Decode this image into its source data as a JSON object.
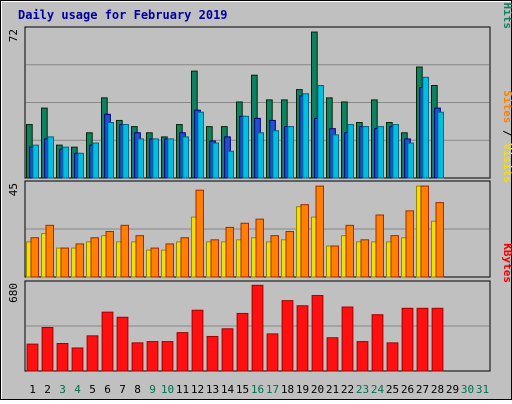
{
  "chart_data": {
    "type": "bar",
    "title": "Daily usage for February 2019",
    "days": [
      "1",
      "2",
      "3",
      "4",
      "5",
      "6",
      "7",
      "8",
      "9",
      "10",
      "11",
      "12",
      "13",
      "14",
      "15",
      "16",
      "17",
      "18",
      "19",
      "20",
      "21",
      "22",
      "23",
      "24",
      "25",
      "26",
      "27",
      "28",
      "29",
      "30",
      "31"
    ],
    "day_colors": [
      "#000000",
      "#000000",
      "#007050",
      "#007050",
      "#000000",
      "#000000",
      "#000000",
      "#000000",
      "#007050",
      "#007050",
      "#000000",
      "#000000",
      "#000000",
      "#000000",
      "#000000",
      "#007050",
      "#007050",
      "#000000",
      "#000000",
      "#000000",
      "#000000",
      "#000000",
      "#007050",
      "#007050",
      "#000000",
      "#000000",
      "#000000",
      "#000000",
      "#000000",
      "#007050",
      "#007050"
    ],
    "panels": [
      {
        "max_label": "72",
        "max": 72,
        "side_labels": [
          {
            "text": "Pages",
            "color": "#00c0e0"
          },
          {
            "text": " / ",
            "color": "#000000"
          },
          {
            "text": "Files",
            "color": "#2050d0"
          },
          {
            "text": " / ",
            "color": "#000000"
          },
          {
            "text": "Hits",
            "color": "#108060"
          }
        ],
        "series": [
          {
            "color": "#108060",
            "values": [
              26,
              34,
              16,
              15,
              22,
              39,
              28,
              25,
              22,
              20,
              26,
              52,
              25,
              25,
              37,
              50,
              38,
              38,
              43,
              71,
              39,
              37,
              27,
              38,
              27,
              22,
              54,
              45,
              0,
              0,
              0
            ]
          },
          {
            "color": "#2050d0",
            "values": [
              15,
              19,
              14,
              12,
              16,
              31,
              26,
              22,
              19,
              19,
              22,
              33,
              18,
              20,
              30,
              29,
              28,
              25,
              40,
              29,
              24,
              22,
              25,
              24,
              25,
              19,
              44,
              34,
              0,
              0,
              0
            ]
          },
          {
            "color": "#00c0e0",
            "values": [
              16,
              20,
              15,
              12,
              17,
              27,
              26,
              19,
              19,
              19,
              20,
              32,
              17,
              13,
              30,
              22,
              23,
              25,
              41,
              45,
              21,
              26,
              25,
              25,
              26,
              17,
              49,
              32,
              0,
              0,
              0
            ]
          }
        ]
      },
      {
        "max_label": "45",
        "max": 45,
        "side_labels": [
          {
            "text": "Sites",
            "color": "#ff8000"
          },
          {
            "text": " / ",
            "color": "#000000"
          },
          {
            "text": "Visits",
            "color": "#f0e000"
          }
        ],
        "series": [
          {
            "color": "#f0e000",
            "values": [
              17,
              21,
              14,
              14,
              17,
              20,
              17,
              17,
              13,
              13,
              17,
              29,
              17,
              17,
              18,
              19,
              17,
              18,
              34,
              29,
              15,
              20,
              17,
              17,
              17,
              19,
              44,
              27,
              0,
              0,
              0
            ]
          },
          {
            "color": "#ff8000",
            "values": [
              19,
              25,
              14,
              16,
              19,
              22,
              25,
              20,
              14,
              16,
              19,
              42,
              18,
              24,
              26,
              28,
              20,
              22,
              35,
              44,
              15,
              25,
              18,
              30,
              20,
              32,
              44,
              36,
              0,
              0,
              0
            ]
          }
        ]
      },
      {
        "max_label": "680",
        "max": 680,
        "side_labels": [
          {
            "text": "KBytes",
            "color": "#f00000"
          }
        ],
        "series": [
          {
            "color": "#ff1010",
            "values": [
              210,
              340,
              215,
              180,
              275,
              460,
              420,
              220,
              230,
              230,
              300,
              475,
              270,
              330,
              450,
              670,
              290,
              550,
              510,
              590,
              260,
              500,
              230,
              440,
              220,
              490,
              490,
              490,
              0,
              0,
              0
            ]
          }
        ]
      }
    ]
  }
}
